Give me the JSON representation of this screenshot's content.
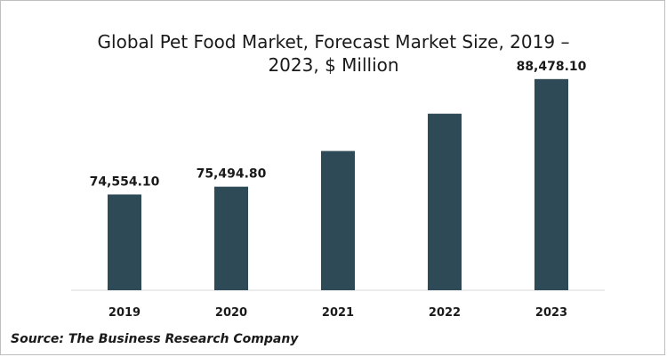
{
  "chart_data": {
    "type": "bar",
    "title": "Global Pet Food Market, Forecast Market Size, 2019 – 2023, $ Million",
    "categories": [
      "2019",
      "2020",
      "2021",
      "2022",
      "2023"
    ],
    "values": [
      74554.1,
      75494.8,
      79800,
      84300,
      88478.1
    ],
    "data_labels": [
      "74,554.10",
      "75,494.80",
      "",
      "",
      "88,478.10"
    ],
    "xlabel": "",
    "ylabel": "",
    "ylim": [
      63000,
      90500
    ],
    "grid": false,
    "legend": "none",
    "bar_color": "#2e4a57"
  },
  "source": "Source: The Business Research Company"
}
